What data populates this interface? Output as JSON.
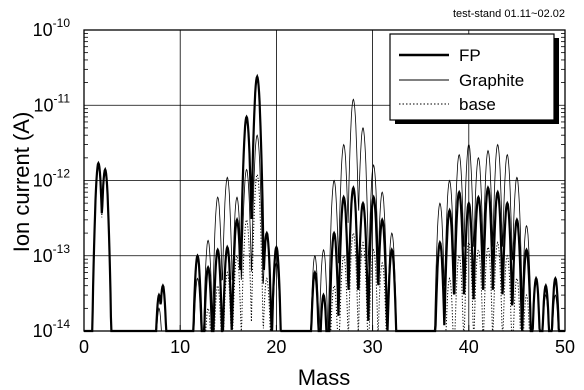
{
  "chart_data": {
    "type": "line",
    "annotation": "test-stand 01.11~02.02",
    "xlabel": "Mass",
    "ylabel": "Ion current (A)",
    "xlim": [
      0,
      50
    ],
    "ylim": [
      1e-14,
      1e-10
    ],
    "yscale": "log",
    "grid": true,
    "legend_position": "top-right",
    "x_ticks": [
      "0",
      "10",
      "20",
      "30",
      "40",
      "50"
    ],
    "y_ticks": [
      {
        "base": "10",
        "exp": "-10"
      },
      {
        "base": "10",
        "exp": "-11"
      },
      {
        "base": "10",
        "exp": "-12"
      },
      {
        "base": "10",
        "exp": "-13"
      },
      {
        "base": "10",
        "exp": "-14"
      }
    ],
    "series": [
      {
        "name": "FP",
        "style": "thick-solid",
        "peaks": [
          [
            1.5,
            1.7e-12
          ],
          [
            2.2,
            1.4e-12
          ],
          [
            7.8,
            3e-14
          ],
          [
            8.2,
            4e-14
          ],
          [
            11.8,
            1e-13
          ],
          [
            12.9,
            7e-14
          ],
          [
            13.9,
            1.2e-13
          ],
          [
            14.9,
            1.3e-13
          ],
          [
            15.9,
            3e-13
          ],
          [
            16.9,
            7e-12
          ],
          [
            18.0,
            2.4e-11
          ],
          [
            19.0,
            2e-13
          ],
          [
            20.0,
            1.3e-13
          ],
          [
            24.0,
            6e-14
          ],
          [
            24.9,
            3e-14
          ],
          [
            26.0,
            2e-13
          ],
          [
            27.0,
            6e-13
          ],
          [
            28.0,
            8e-13
          ],
          [
            29.0,
            5e-13
          ],
          [
            30.1,
            6e-13
          ],
          [
            31.0,
            3e-13
          ],
          [
            32.0,
            1.2e-13
          ],
          [
            37.0,
            1.5e-13
          ],
          [
            38.0,
            4e-13
          ],
          [
            39.0,
            7e-13
          ],
          [
            40.0,
            5e-13
          ],
          [
            41.0,
            6e-13
          ],
          [
            42.0,
            8e-13
          ],
          [
            43.0,
            7e-13
          ],
          [
            44.0,
            5e-13
          ],
          [
            45.0,
            3e-13
          ],
          [
            46.0,
            1.2e-13
          ],
          [
            47.0,
            5e-14
          ],
          [
            48.0,
            4e-14
          ],
          [
            49.0,
            5e-14
          ]
        ]
      },
      {
        "name": "Graphite",
        "style": "thin-solid",
        "peaks": [
          [
            1.5,
            1.7e-12
          ],
          [
            2.2,
            1.4e-12
          ],
          [
            7.8,
            2e-14
          ],
          [
            11.8,
            5e-14
          ],
          [
            12.9,
            1.6e-13
          ],
          [
            13.9,
            6e-13
          ],
          [
            14.9,
            1.1e-12
          ],
          [
            15.9,
            6e-13
          ],
          [
            16.9,
            1.4e-12
          ],
          [
            18.0,
            4e-12
          ],
          [
            19.0,
            2e-13
          ],
          [
            20.0,
            8e-14
          ],
          [
            24.0,
            1e-13
          ],
          [
            24.9,
            1.2e-13
          ],
          [
            26.0,
            1e-12
          ],
          [
            27.0,
            3e-12
          ],
          [
            28.0,
            1.2e-11
          ],
          [
            29.0,
            5e-12
          ],
          [
            30.1,
            1.6e-12
          ],
          [
            31.0,
            7e-13
          ],
          [
            32.0,
            2e-13
          ],
          [
            37.0,
            5e-13
          ],
          [
            38.0,
            1e-12
          ],
          [
            39.0,
            2.2e-12
          ],
          [
            40.0,
            3e-12
          ],
          [
            41.0,
            2e-12
          ],
          [
            42.0,
            2.5e-12
          ],
          [
            43.0,
            3e-12
          ],
          [
            44.0,
            2.2e-12
          ],
          [
            45.0,
            1.1e-12
          ],
          [
            46.0,
            2.5e-13
          ],
          [
            47.0,
            5e-14
          ],
          [
            48.0,
            3e-14
          ],
          [
            49.0,
            3e-14
          ]
        ]
      },
      {
        "name": "base",
        "style": "dotted",
        "peaks": [
          [
            1.5,
            1.5e-12
          ],
          [
            2.2,
            1.3e-12
          ],
          [
            12.9,
            2e-14
          ],
          [
            13.9,
            4e-14
          ],
          [
            14.9,
            6e-14
          ],
          [
            15.9,
            1e-13
          ],
          [
            16.9,
            3e-13
          ],
          [
            18.0,
            1.2e-12
          ],
          [
            19.0,
            5e-14
          ],
          [
            26.0,
            4e-14
          ],
          [
            27.0,
            1e-13
          ],
          [
            28.0,
            2e-13
          ],
          [
            29.0,
            1.5e-13
          ],
          [
            30.1,
            1.2e-13
          ],
          [
            31.0,
            8e-14
          ],
          [
            38.0,
            5e-14
          ],
          [
            39.0,
            1e-13
          ],
          [
            40.0,
            1.5e-13
          ],
          [
            41.0,
            1.2e-13
          ],
          [
            42.0,
            1.3e-13
          ],
          [
            43.0,
            1.5e-13
          ],
          [
            44.0,
            1e-13
          ],
          [
            45.0,
            5e-14
          ],
          [
            46.0,
            3e-14
          ]
        ]
      }
    ]
  }
}
